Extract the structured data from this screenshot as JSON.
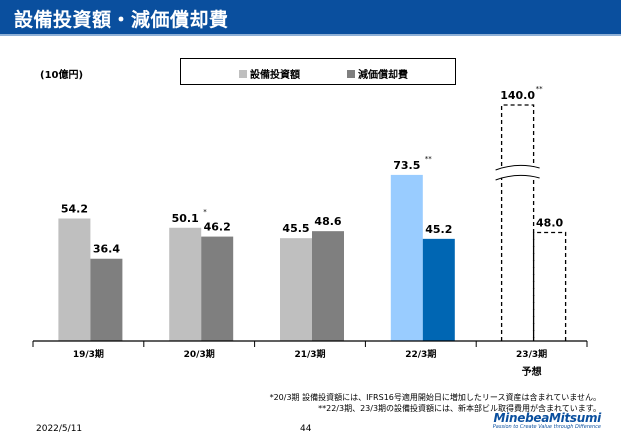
{
  "header": {
    "title": "設備投資額・減価償却費"
  },
  "page": {
    "date": "2022/5/11",
    "number": "44"
  },
  "logo": {
    "name": "MinebeaMitsumi",
    "tagline": "Passion to Create Value through Difference"
  },
  "footnotes": [
    "*20/3期 設備投資額には、IFRS16号適用開始日に増加したリース資産は含まれていません。",
    "**22/3期、23/3期の設備投資額には、新本部ビル取得費用が含まれています。"
  ],
  "colors": {
    "capex": "#bfbfbf",
    "depreciation": "#7f7f7f",
    "capex_highlight": "#99ccff",
    "depreciation_highlight": "#0066b3",
    "title_bar": "#0a4f9e"
  },
  "chart_data": {
    "type": "bar",
    "unit_label": "(10億円)",
    "categories": [
      "19/3期",
      "20/3期",
      "21/3期",
      "22/3期",
      "23/3期"
    ],
    "category_sublabels": [
      "",
      "",
      "",
      "",
      "予想"
    ],
    "series": [
      {
        "name": "設備投資額",
        "values": [
          54.2,
          50.1,
          45.5,
          73.5,
          140.0
        ],
        "labels": [
          "54.2",
          "50.1",
          "45.5",
          "73.5",
          "140.0"
        ],
        "marks": [
          "",
          "*",
          "",
          "**",
          "**"
        ]
      },
      {
        "name": "減価償却費",
        "values": [
          36.4,
          46.2,
          48.6,
          45.2,
          48.0
        ],
        "labels": [
          "36.4",
          "46.2",
          "48.6",
          "45.2",
          "48.0"
        ],
        "marks": [
          "",
          "",
          "",
          "",
          ""
        ]
      }
    ],
    "forecast_category": "23/3期",
    "axis_break": true,
    "legend_position": "top-center",
    "grid": false
  }
}
